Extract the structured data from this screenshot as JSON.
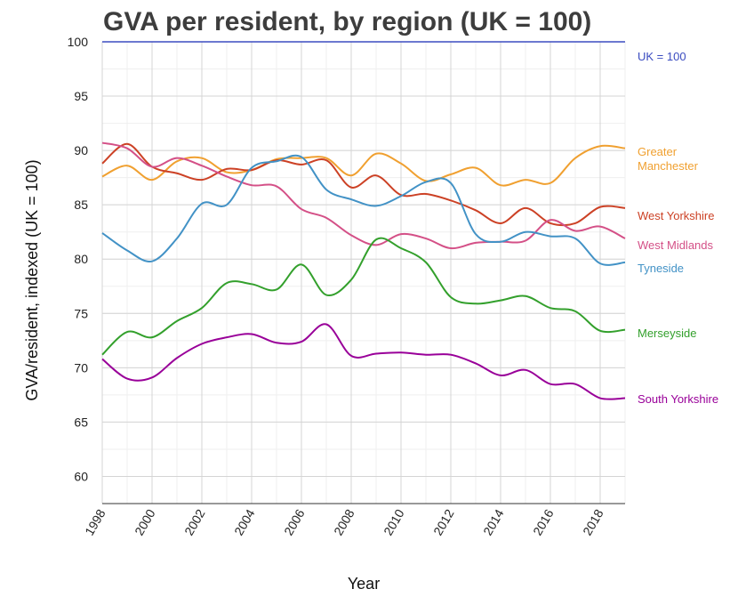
{
  "chart_data": {
    "type": "line",
    "title": "GVA per resident, by region (UK = 100)",
    "xlabel": "Year",
    "ylabel": "GVA/resident, indexed (UK = 100)",
    "xlim": [
      1998,
      2019
    ],
    "ylim": [
      57.5,
      100
    ],
    "x_ticks": [
      1998,
      2000,
      2002,
      2004,
      2006,
      2008,
      2010,
      2012,
      2014,
      2016,
      2018
    ],
    "y_ticks": [
      60,
      65,
      70,
      75,
      80,
      85,
      90,
      95,
      100
    ],
    "grid": true,
    "legend": "labels at line ends, right",
    "x": [
      1998,
      1999,
      2000,
      2001,
      2002,
      2003,
      2004,
      2005,
      2006,
      2007,
      2008,
      2009,
      2010,
      2011,
      2012,
      2013,
      2014,
      2015,
      2016,
      2017,
      2018,
      2019
    ],
    "series": [
      {
        "name": "UK = 100",
        "color": "#3b4cc0",
        "label_lines": [
          "UK = 100"
        ],
        "values": [
          100,
          100,
          100,
          100,
          100,
          100,
          100,
          100,
          100,
          100,
          100,
          100,
          100,
          100,
          100,
          100,
          100,
          100,
          100,
          100,
          100,
          100
        ]
      },
      {
        "name": "Greater Manchester",
        "color": "#f0a030",
        "label_lines": [
          "Greater",
          "Manchester"
        ],
        "values": [
          87.6,
          88.6,
          87.3,
          89.0,
          89.3,
          88.0,
          88.2,
          89.2,
          89.3,
          89.3,
          87.7,
          89.7,
          88.8,
          87.2,
          87.8,
          88.4,
          86.8,
          87.3,
          87.0,
          89.3,
          90.4,
          90.2
        ]
      },
      {
        "name": "West Yorkshire",
        "color": "#cc4125",
        "label_lines": [
          "West Yorkshire"
        ],
        "values": [
          88.8,
          90.6,
          88.5,
          87.9,
          87.3,
          88.3,
          88.2,
          89.1,
          88.7,
          89.1,
          86.6,
          87.7,
          85.9,
          86.0,
          85.4,
          84.5,
          83.3,
          84.7,
          83.3,
          83.3,
          84.8,
          84.7
        ]
      },
      {
        "name": "West Midlands",
        "color": "#d45087",
        "label_lines": [
          "West Midlands"
        ],
        "values": [
          90.7,
          90.2,
          88.5,
          89.3,
          88.6,
          87.6,
          86.8,
          86.7,
          84.6,
          83.8,
          82.2,
          81.3,
          82.3,
          81.9,
          81.0,
          81.5,
          81.6,
          81.7,
          83.6,
          82.6,
          83.0,
          81.9
        ]
      },
      {
        "name": "Tyneside",
        "color": "#4292c6",
        "label_lines": [
          "Tyneside"
        ],
        "values": [
          82.4,
          80.8,
          79.8,
          81.9,
          85.1,
          85.0,
          88.4,
          89.0,
          89.4,
          86.4,
          85.5,
          84.9,
          85.8,
          87.1,
          87.0,
          82.3,
          81.6,
          82.5,
          82.1,
          81.9,
          79.6,
          79.7
        ]
      },
      {
        "name": "Merseyside",
        "color": "#33a02c",
        "label_lines": [
          "Merseyside"
        ],
        "values": [
          71.2,
          73.3,
          72.8,
          74.3,
          75.5,
          77.8,
          77.7,
          77.2,
          79.5,
          76.7,
          78.1,
          81.8,
          81.0,
          79.7,
          76.5,
          75.9,
          76.2,
          76.6,
          75.5,
          75.2,
          73.4,
          73.5
        ]
      },
      {
        "name": "South Yorkshire",
        "color": "#990099",
        "label_lines": [
          "South Yorkshire"
        ],
        "values": [
          70.8,
          69.0,
          69.1,
          70.9,
          72.2,
          72.8,
          73.1,
          72.3,
          72.4,
          74.0,
          71.1,
          71.3,
          71.4,
          71.2,
          71.2,
          70.4,
          69.3,
          69.8,
          68.5,
          68.5,
          67.2,
          67.2
        ]
      }
    ]
  }
}
